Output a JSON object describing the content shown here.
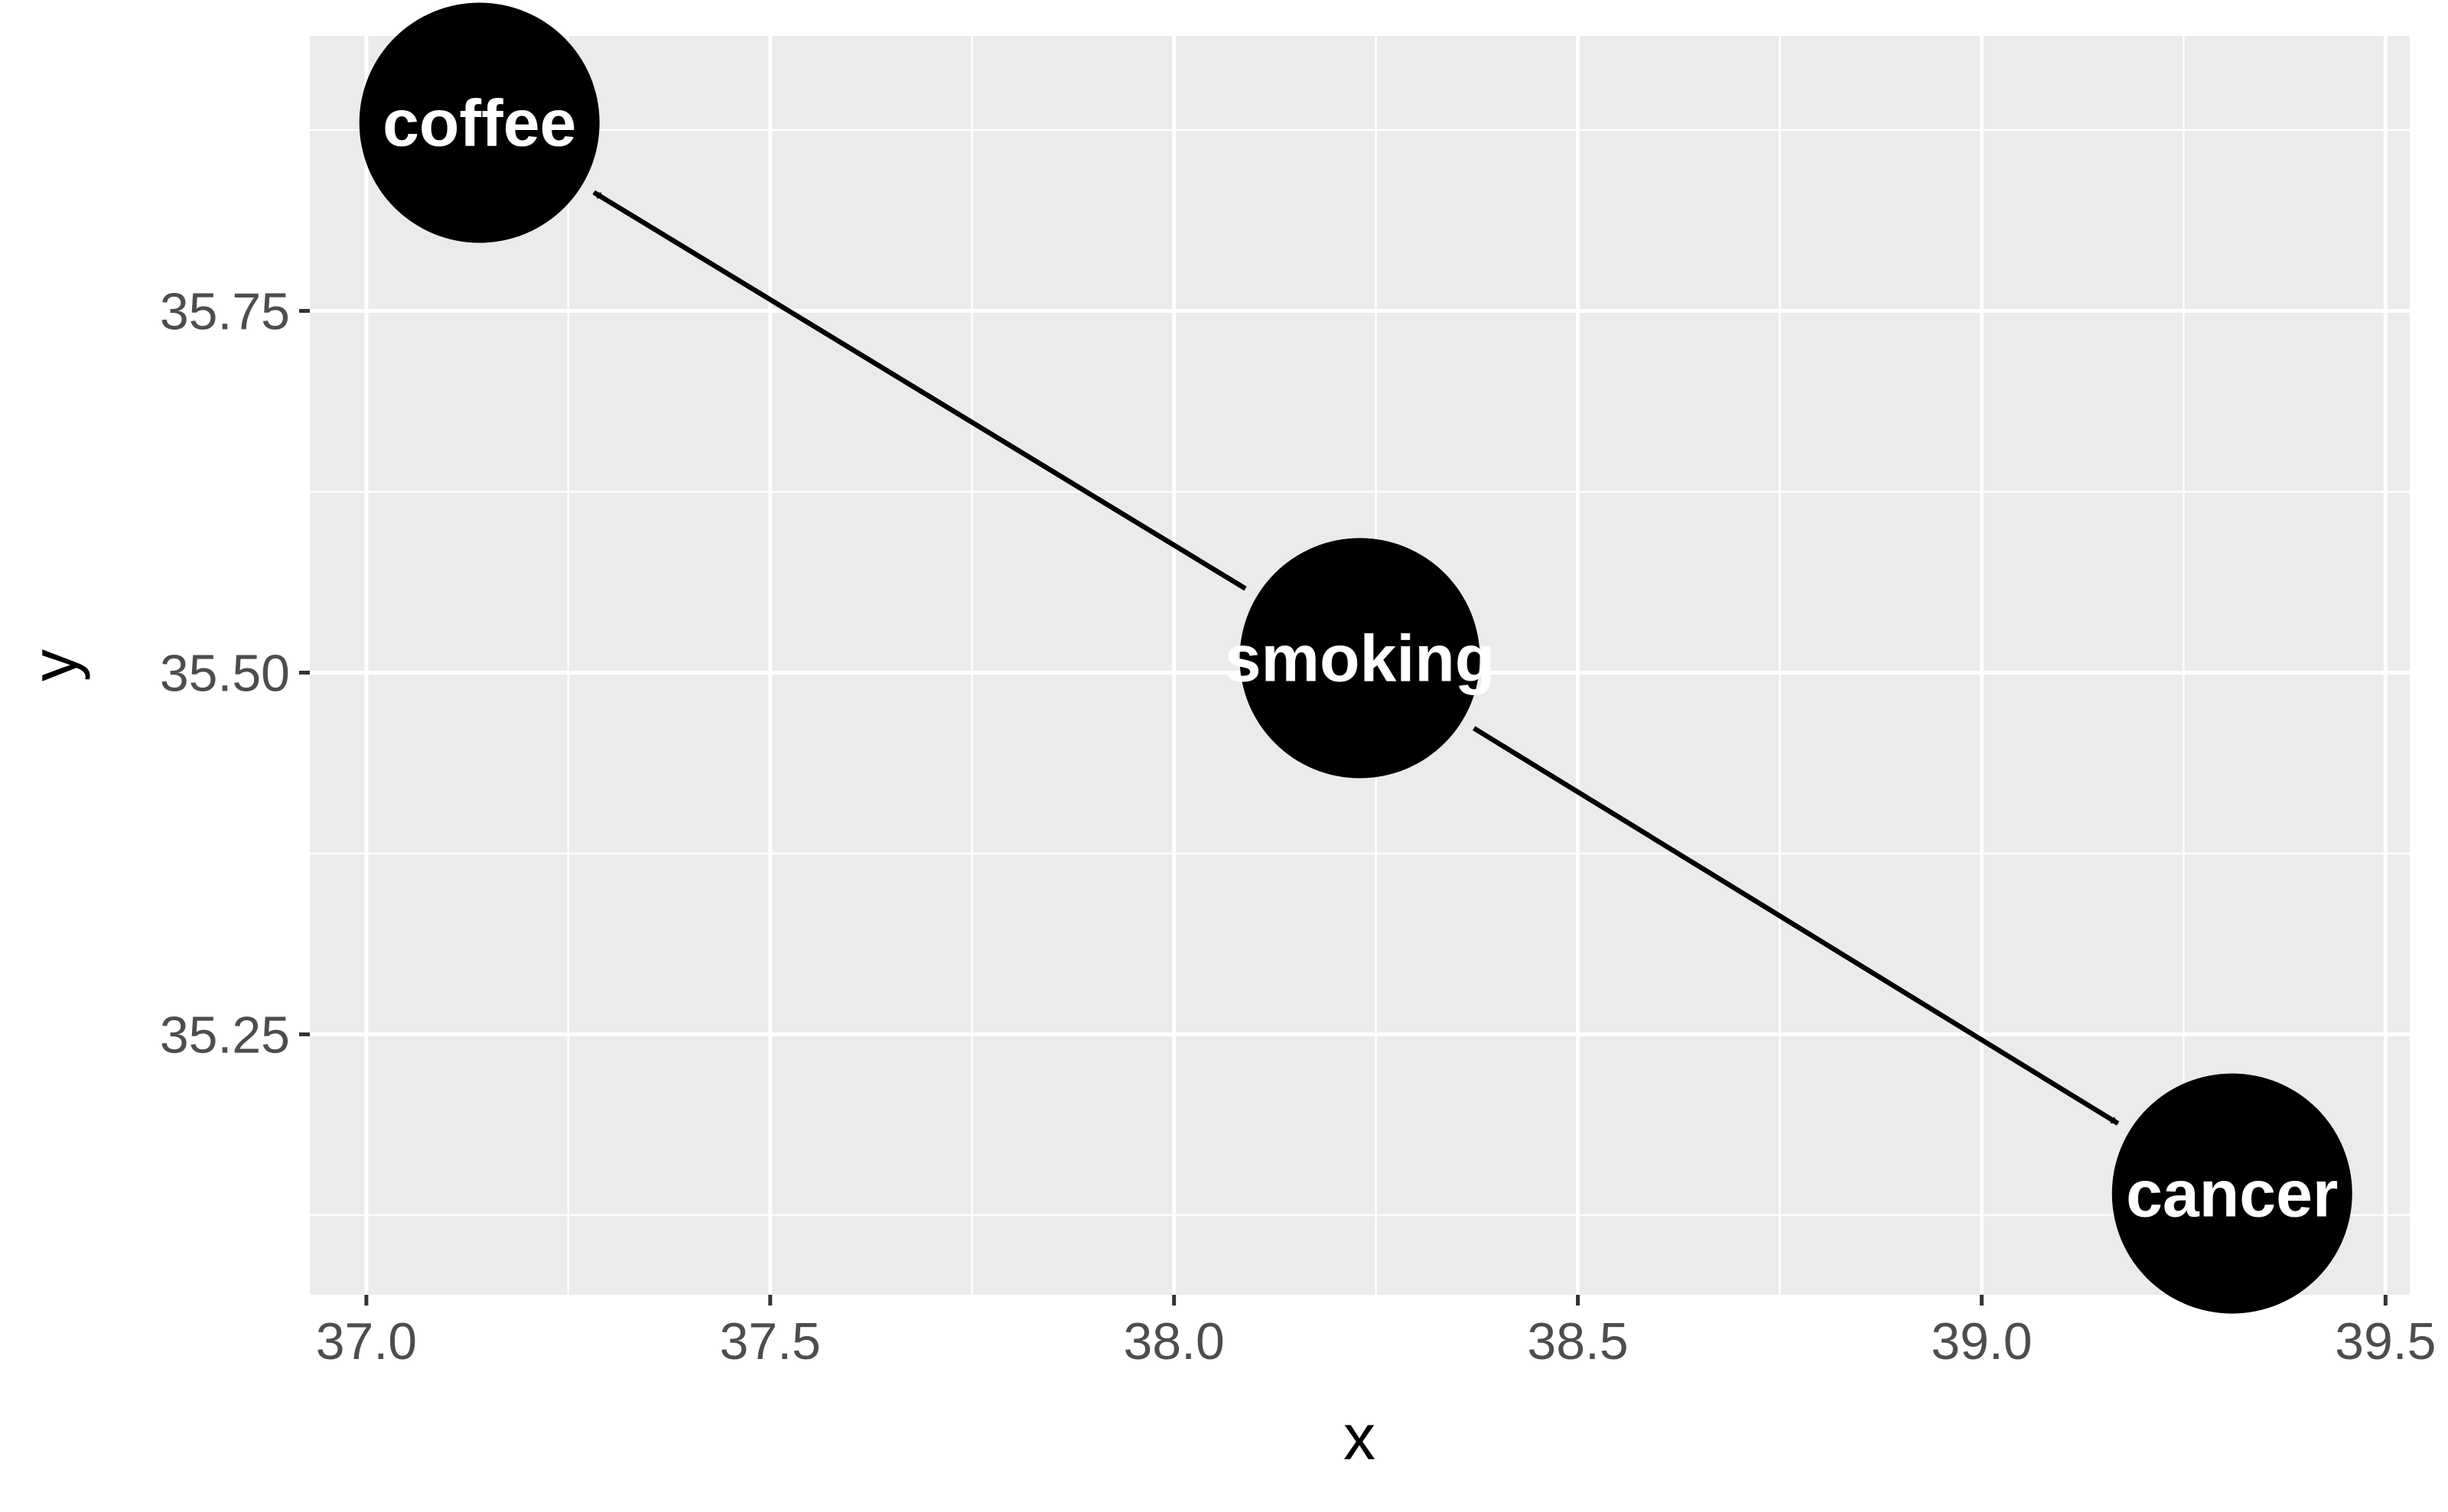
{
  "chart_data": {
    "type": "scatter",
    "subtype": "dag",
    "xlabel": "x",
    "ylabel": "y",
    "xlim": [
      36.93,
      39.53
    ],
    "ylim": [
      35.07,
      35.94
    ],
    "x_ticks": [
      37.0,
      37.5,
      38.0,
      38.5,
      39.0,
      39.5
    ],
    "x_tick_labels": [
      "37.0",
      "37.5",
      "38.0",
      "38.5",
      "39.0",
      "39.5"
    ],
    "y_ticks": [
      35.25,
      35.5,
      35.75
    ],
    "y_tick_labels": [
      "35.25",
      "35.50",
      "35.75"
    ],
    "grid": true,
    "nodes": [
      {
        "name": "coffee",
        "x": 37.14,
        "y": 35.88
      },
      {
        "name": "smoking",
        "x": 38.23,
        "y": 35.51
      },
      {
        "name": "cancer",
        "x": 39.31,
        "y": 35.14
      }
    ],
    "edges": [
      {
        "from": "smoking",
        "to": "coffee"
      },
      {
        "from": "smoking",
        "to": "cancer"
      }
    ],
    "colors": {
      "panel": "#ebebeb",
      "grid": "#ffffff",
      "node": "#000000",
      "node_text": "#ffffff",
      "edge": "#000000"
    }
  }
}
